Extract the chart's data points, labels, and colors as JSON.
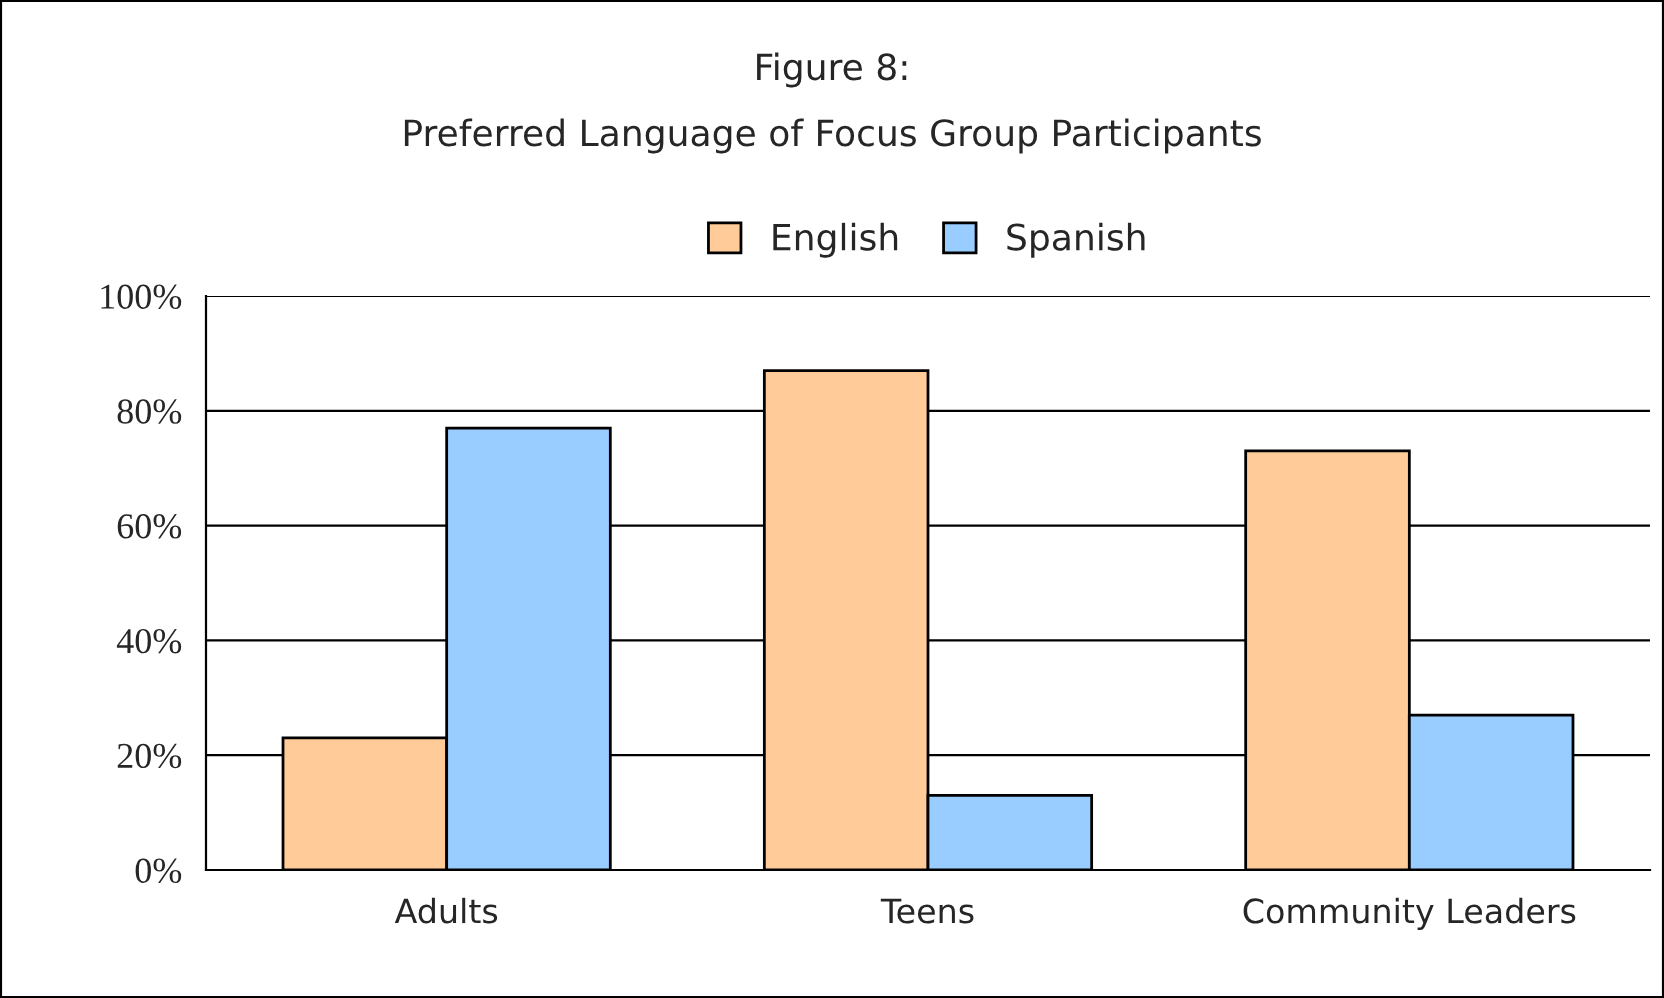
{
  "chart_data": {
    "type": "bar",
    "title": "Figure 8:",
    "subtitle": "Preferred Language of Focus Group Participants",
    "categories": [
      "Adults",
      "Teens",
      "Community Leaders"
    ],
    "series": [
      {
        "name": "English",
        "color": "#ffcc99",
        "values": [
          23,
          87,
          73
        ]
      },
      {
        "name": "Spanish",
        "color": "#99ccff",
        "values": [
          77,
          13,
          27
        ]
      }
    ],
    "ylim": [
      0,
      100
    ],
    "yticks": [
      {
        "value": 0,
        "label": "0%"
      },
      {
        "value": 20,
        "label": "20%"
      },
      {
        "value": 40,
        "label": "40%"
      },
      {
        "value": 60,
        "label": "60%"
      },
      {
        "value": 80,
        "label": "80%"
      },
      {
        "value": 100,
        "label": "100%"
      }
    ],
    "grid": "y",
    "legend": "top"
  }
}
